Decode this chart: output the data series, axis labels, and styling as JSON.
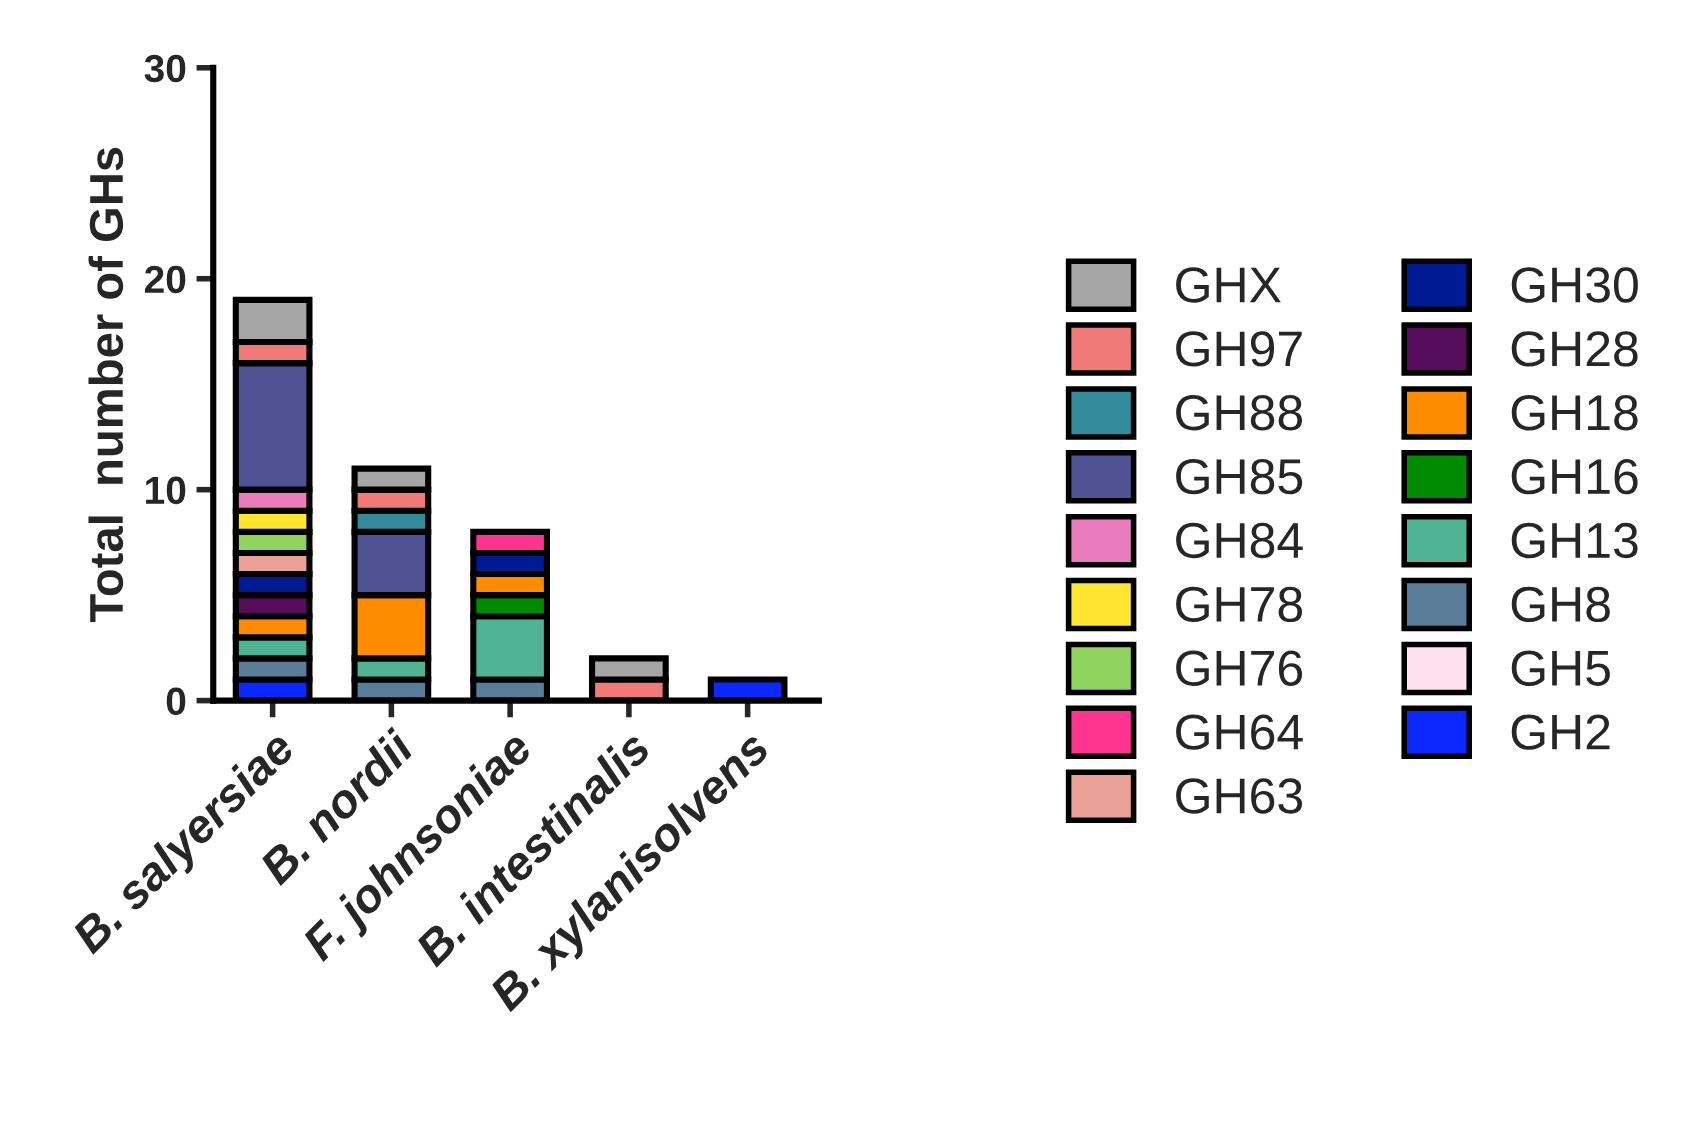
{
  "chart_data": {
    "type": "bar",
    "stacked": true,
    "ylabel": "Total  number of GHs",
    "categories": [
      "B. salyersiae",
      "B. nordii",
      "F. johnsoniae",
      "B. intestinalis",
      "B. xylanisolvens"
    ],
    "ylim": [
      0,
      30
    ],
    "yticks": [
      0,
      10,
      20,
      30
    ],
    "grid": false,
    "legend": "right",
    "series": [
      {
        "name": "GH2",
        "color": "#0a28ff",
        "values": [
          1,
          0,
          0,
          0,
          1
        ]
      },
      {
        "name": "GH5",
        "color": "#ffe0ee",
        "values": [
          0,
          0,
          0,
          0,
          0
        ]
      },
      {
        "name": "GH8",
        "color": "#5a7d9a",
        "values": [
          1,
          1,
          1,
          0,
          0
        ]
      },
      {
        "name": "GH13",
        "color": "#50b494",
        "values": [
          1,
          1,
          3,
          0,
          0
        ]
      },
      {
        "name": "GH16",
        "color": "#008a00",
        "values": [
          0,
          0,
          1,
          0,
          0
        ]
      },
      {
        "name": "GH18",
        "color": "#ff8c00",
        "values": [
          1,
          3,
          1,
          0,
          0
        ]
      },
      {
        "name": "GH28",
        "color": "#560d5c",
        "values": [
          1,
          0,
          0,
          0,
          0
        ]
      },
      {
        "name": "GH30",
        "color": "#001a94",
        "values": [
          1,
          0,
          1,
          0,
          0
        ]
      },
      {
        "name": "GH63",
        "color": "#eba098",
        "values": [
          1,
          0,
          0,
          0,
          0
        ]
      },
      {
        "name": "GH64",
        "color": "#ff3390",
        "values": [
          0,
          0,
          1,
          0,
          0
        ]
      },
      {
        "name": "GH76",
        "color": "#8ed35e",
        "values": [
          1,
          0,
          0,
          0,
          0
        ]
      },
      {
        "name": "GH78",
        "color": "#ffe530",
        "values": [
          1,
          0,
          0,
          0,
          0
        ]
      },
      {
        "name": "GH84",
        "color": "#ea7bbd",
        "values": [
          1,
          0,
          0,
          0,
          0
        ]
      },
      {
        "name": "GH85",
        "color": "#4f5394",
        "values": [
          6,
          3,
          0,
          0,
          0
        ]
      },
      {
        "name": "GH88",
        "color": "#338a9a",
        "values": [
          0,
          1,
          0,
          0,
          0
        ]
      },
      {
        "name": "GH97",
        "color": "#f07a78",
        "values": [
          1,
          1,
          0,
          1,
          0
        ]
      },
      {
        "name": "GHX",
        "color": "#a6a6a6",
        "values": [
          2,
          1,
          0,
          1,
          0
        ]
      }
    ]
  }
}
